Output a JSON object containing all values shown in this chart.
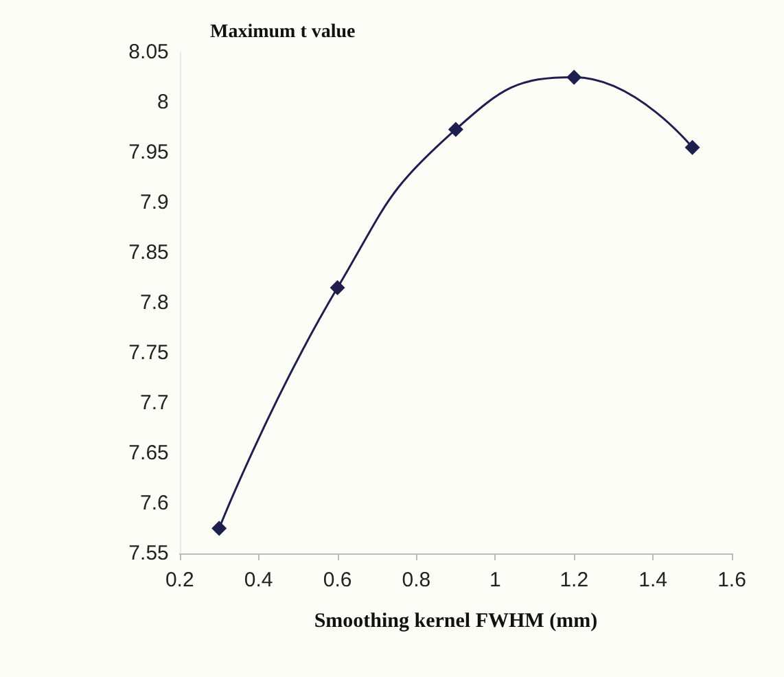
{
  "chart_data": {
    "type": "line",
    "xlabel": "Smoothing kernel FWHM (mm)",
    "ylabel": "Maximum t value",
    "x": [
      0.3,
      0.6,
      0.9,
      1.2,
      1.5
    ],
    "series": [
      {
        "color": "#1f1f4f",
        "values": [
          7.575,
          7.815,
          7.973,
          8.025,
          7.955
        ]
      }
    ],
    "xlim": [
      0.2,
      1.6
    ],
    "xticks": [
      0.2,
      0.4,
      0.6,
      0.8,
      1,
      1.2,
      1.4,
      1.6
    ],
    "ylim": [
      7.55,
      8.05
    ],
    "yticks": [
      7.55,
      7.6,
      7.65,
      7.7,
      7.75,
      7.8,
      7.85,
      7.9,
      7.95,
      8,
      8.05
    ],
    "grid": false,
    "marker": "diamond",
    "line_style": "solid"
  }
}
